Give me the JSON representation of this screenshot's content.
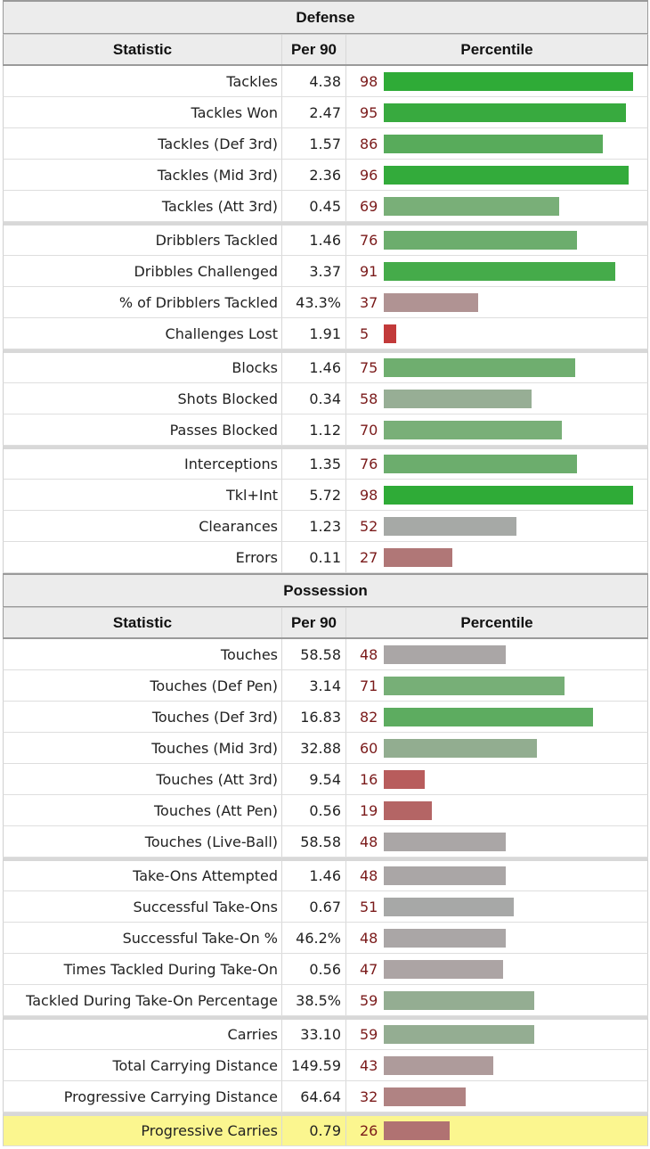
{
  "sections": [
    {
      "title": "Defense",
      "headers": {
        "stat": "Statistic",
        "per90": "Per 90",
        "pct": "Percentile"
      },
      "rows": [
        {
          "label": "Tackles",
          "per90": "4.38",
          "pct": 98,
          "color": "#2fab37"
        },
        {
          "label": "Tackles Won",
          "per90": "2.47",
          "pct": 95,
          "color": "#38aa3f"
        },
        {
          "label": "Tackles (Def 3rd)",
          "per90": "1.57",
          "pct": 86,
          "color": "#58ab5b"
        },
        {
          "label": "Tackles (Mid 3rd)",
          "per90": "2.36",
          "pct": 96,
          "color": "#33ab3b"
        },
        {
          "label": "Tackles (Att 3rd)",
          "per90": "0.45",
          "pct": 69,
          "color": "#79af78",
          "gap": false
        },
        {
          "label": "Dribblers Tackled",
          "per90": "1.46",
          "pct": 76,
          "color": "#6cad6d",
          "gap": true
        },
        {
          "label": "Dribbles Challenged",
          "per90": "3.37",
          "pct": 91,
          "color": "#45ab4a"
        },
        {
          "label": "% of Dribblers Tackled",
          "per90": "43.3%",
          "pct": 37,
          "color": "#b09393"
        },
        {
          "label": "Challenges Lost",
          "per90": "1.91",
          "pct": 5,
          "color": "#c23a3a"
        },
        {
          "label": "Blocks",
          "per90": "1.46",
          "pct": 75,
          "color": "#6fae6f",
          "gap": true
        },
        {
          "label": "Shots Blocked",
          "per90": "0.34",
          "pct": 58,
          "color": "#97ae95"
        },
        {
          "label": "Passes Blocked",
          "per90": "1.12",
          "pct": 70,
          "color": "#79af78"
        },
        {
          "label": "Interceptions",
          "per90": "1.35",
          "pct": 76,
          "color": "#6cad6d",
          "gap": true
        },
        {
          "label": "Tkl+Int",
          "per90": "5.72",
          "pct": 98,
          "color": "#2fab37"
        },
        {
          "label": "Clearances",
          "per90": "1.23",
          "pct": 52,
          "color": "#a6a9a6"
        },
        {
          "label": "Errors",
          "per90": "0.11",
          "pct": 27,
          "color": "#b07777"
        }
      ]
    },
    {
      "title": "Possession",
      "headers": {
        "stat": "Statistic",
        "per90": "Per 90",
        "pct": "Percentile"
      },
      "rows": [
        {
          "label": "Touches",
          "per90": "58.58",
          "pct": 48,
          "color": "#aaa6a6"
        },
        {
          "label": "Touches (Def Pen)",
          "per90": "3.14",
          "pct": 71,
          "color": "#77af77"
        },
        {
          "label": "Touches (Def 3rd)",
          "per90": "16.83",
          "pct": 82,
          "color": "#5dac60"
        },
        {
          "label": "Touches (Mid 3rd)",
          "per90": "32.88",
          "pct": 60,
          "color": "#92ad90"
        },
        {
          "label": "Touches (Att 3rd)",
          "per90": "9.54",
          "pct": 16,
          "color": "#b85c5c"
        },
        {
          "label": "Touches (Att Pen)",
          "per90": "0.56",
          "pct": 19,
          "color": "#b46565"
        },
        {
          "label": "Touches (Live-Ball)",
          "per90": "58.58",
          "pct": 48,
          "color": "#aaa6a6"
        },
        {
          "label": "Take-Ons Attempted",
          "per90": "1.46",
          "pct": 48,
          "color": "#aaa6a6",
          "gap": true
        },
        {
          "label": "Successful Take-Ons",
          "per90": "0.67",
          "pct": 51,
          "color": "#a7a8a7"
        },
        {
          "label": "Successful Take-On %",
          "per90": "46.2%",
          "pct": 48,
          "color": "#aaa6a6"
        },
        {
          "label": "Times Tackled During Take-On",
          "per90": "0.56",
          "pct": 47,
          "color": "#aca4a4"
        },
        {
          "label": "Tackled During Take-On Percentage",
          "per90": "38.5%",
          "pct": 59,
          "color": "#94ad92"
        },
        {
          "label": "Carries",
          "per90": "33.10",
          "pct": 59,
          "color": "#94ad92",
          "gap": true
        },
        {
          "label": "Total Carrying Distance",
          "per90": "149.59",
          "pct": 43,
          "color": "#ae9b9b"
        },
        {
          "label": "Progressive Carrying Distance",
          "per90": "64.64",
          "pct": 32,
          "color": "#b08383"
        },
        {
          "label": "Progressive Carries",
          "per90": "0.79",
          "pct": 26,
          "color": "#b07272",
          "gap": true,
          "highlight": true
        }
      ]
    }
  ]
}
